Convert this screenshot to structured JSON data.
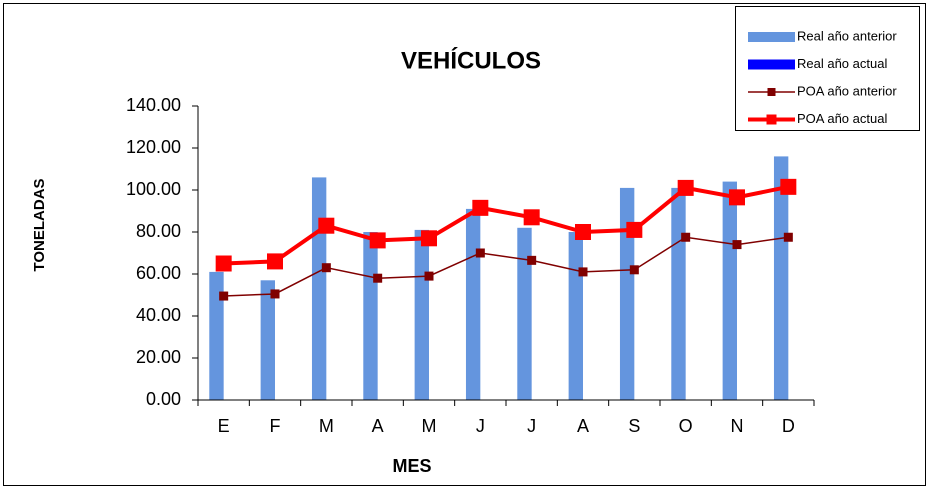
{
  "chart_data": {
    "type": "bar-line",
    "title": "VEHÍCULOS",
    "x_label": "MES",
    "y_label": "TONELADAS",
    "categories": [
      "E",
      "F",
      "M",
      "A",
      "M",
      "J",
      "J",
      "A",
      "S",
      "O",
      "N",
      "D"
    ],
    "series": [
      {
        "name": "Real año anterior",
        "type": "bar",
        "color": "#6495de",
        "values": [
          61,
          57,
          106,
          80,
          81,
          91,
          82,
          80,
          101,
          101,
          104,
          116
        ]
      },
      {
        "name": "Real año actual",
        "type": "bar",
        "color": "#0000ff",
        "values": [
          null,
          null,
          null,
          null,
          null,
          null,
          null,
          null,
          null,
          null,
          null,
          null
        ]
      },
      {
        "name": "POA año anterior",
        "type": "line",
        "color": "#800000",
        "values": [
          49.5,
          50.5,
          63,
          58,
          59,
          70,
          66.5,
          61,
          62,
          77.5,
          74,
          77.5
        ]
      },
      {
        "name": "POA año actual",
        "type": "line",
        "color": "#ff0000",
        "values": [
          65,
          66,
          83,
          76,
          77,
          91.5,
          87,
          80,
          81,
          101,
          96.5,
          101.5
        ]
      }
    ],
    "ylim": [
      0,
      140
    ],
    "yticks": [
      {
        "value": 0,
        "label": "0.00"
      },
      {
        "value": 20,
        "label": "20.00"
      },
      {
        "value": 40,
        "label": "40.00"
      },
      {
        "value": 60,
        "label": "60.00"
      },
      {
        "value": 80,
        "label": "80.00"
      },
      {
        "value": 100,
        "label": "100.00"
      },
      {
        "value": 120,
        "label": "120.00"
      },
      {
        "value": 140,
        "label": "140.00"
      }
    ],
    "legend": "top-right"
  }
}
